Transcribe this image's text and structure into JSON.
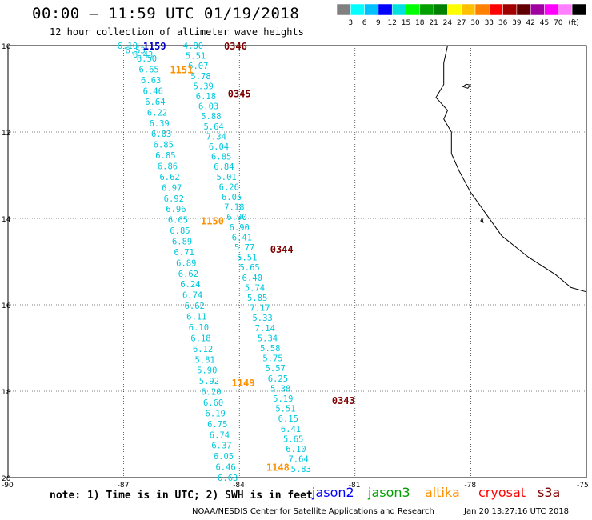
{
  "header": {
    "title": "00:00 – 11:59 UTC 01/19/2018",
    "subtitle": "12 hour collection of altimeter wave heights"
  },
  "colorscale": {
    "colors": [
      "#808080",
      "#00ffff",
      "#00c0ff",
      "#0000ff",
      "#00e0e0",
      "#00ff00",
      "#00a000",
      "#008000",
      "#ffff00",
      "#ffc000",
      "#ff8000",
      "#ff0000",
      "#a00000",
      "#600000",
      "#a000a0",
      "#ff00ff",
      "#ff80ff",
      "#000000"
    ],
    "labels": [
      "3",
      "6",
      "9",
      "12",
      "15",
      "18",
      "21",
      "24",
      "27",
      "30",
      "33",
      "36",
      "39",
      "42",
      "45",
      "70",
      "(ft)"
    ]
  },
  "map": {
    "lat_ticks": [
      "10",
      "12",
      "14",
      "16",
      "18",
      "20"
    ],
    "lon_ticks": [
      "-90",
      "-87",
      "-84",
      "-81",
      "-78",
      "-75"
    ],
    "track_color": "#00c8dc",
    "tracks": [
      {
        "values": [
          "6.10",
          "6.53",
          "6.43"
        ],
        "lat_start": 10.0,
        "lat_end": 10.2,
        "lon_start": -86.9,
        "lon_end": -86.5
      },
      {
        "values": [
          "6.50",
          "6.65",
          "6.63",
          "6.46",
          "6.64",
          "6.22",
          "6.39",
          "6.83",
          "6.85",
          "6.85",
          "6.86",
          "6.62",
          "6.97",
          "6.92",
          "6.96",
          "6.65",
          "6.85",
          "6.89",
          "6.71",
          "6.89",
          "6.62",
          "6.24",
          "6.74",
          "6.62",
          "6.11",
          "6.10",
          "6.18",
          "6.12",
          "5.81",
          "5.90",
          "5.92",
          "6.20",
          "6.60",
          "6.19",
          "6.75",
          "6.74",
          "6.37",
          "6.05",
          "6.46",
          "6.63"
        ],
        "lat_start": 10.3,
        "lat_end": 20.0,
        "lon_start": -86.4,
        "lon_end": -84.3
      },
      {
        "values": [
          "4.80",
          "5.51",
          "6.07",
          "5.78",
          "5.39",
          "6.18",
          "6.03",
          "5.88",
          "5.64",
          "7.34",
          "6.04",
          "6.85",
          "6.84",
          "5.01",
          "6.26",
          "6.05",
          "7.18",
          "6.90",
          "6.90",
          "6.41",
          "5.77",
          "5.51",
          "5.65",
          "6.40",
          "5.74",
          "5.85",
          "7.17",
          "5.33",
          "7.14",
          "5.34",
          "5.58",
          "5.75",
          "5.57",
          "6.25",
          "5.38",
          "5.19",
          "5.51",
          "6.15",
          "6.41",
          "5.65",
          "6.10",
          "7.64",
          "5.83"
        ],
        "lat_start": 10.0,
        "lat_end": 19.8,
        "lon_start": -85.2,
        "lon_end": -82.4
      }
    ],
    "time_labels": [
      {
        "text": "1159",
        "color": "#0000c0",
        "lat": 10.0,
        "lon": -86.2
      },
      {
        "text": "0346",
        "color": "#800000",
        "lat": 10.0,
        "lon": -84.1
      },
      {
        "text": "1151",
        "color": "#ff9000",
        "lat": 10.55,
        "lon": -85.5
      },
      {
        "text": "0345",
        "color": "#800000",
        "lat": 11.1,
        "lon": -84.0
      },
      {
        "text": "1150",
        "color": "#ff9000",
        "lat": 14.05,
        "lon": -84.7
      },
      {
        "text": "0344",
        "color": "#800000",
        "lat": 14.7,
        "lon": -82.9
      },
      {
        "text": "1149",
        "color": "#ff9000",
        "lat": 17.8,
        "lon": -83.9
      },
      {
        "text": "0343",
        "color": "#800000",
        "lat": 18.2,
        "lon": -81.3
      },
      {
        "text": "1148",
        "color": "#ff9000",
        "lat": 19.75,
        "lon": -83.0
      }
    ]
  },
  "note": "note: 1) Time is in UTC; 2) SWH is in feet",
  "legend": [
    {
      "name": "jason2",
      "color": "#0000ff"
    },
    {
      "name": "jason3",
      "color": "#00a000"
    },
    {
      "name": "altika",
      "color": "#ff9000"
    },
    {
      "name": "cryosat",
      "color": "#ff0000"
    },
    {
      "name": "s3a",
      "color": "#800000"
    }
  ],
  "footer": "NOAA/NESDIS Center for Satellite Applications and Research",
  "timestamp": "Jan 20 13:27:16 UTC 2018"
}
